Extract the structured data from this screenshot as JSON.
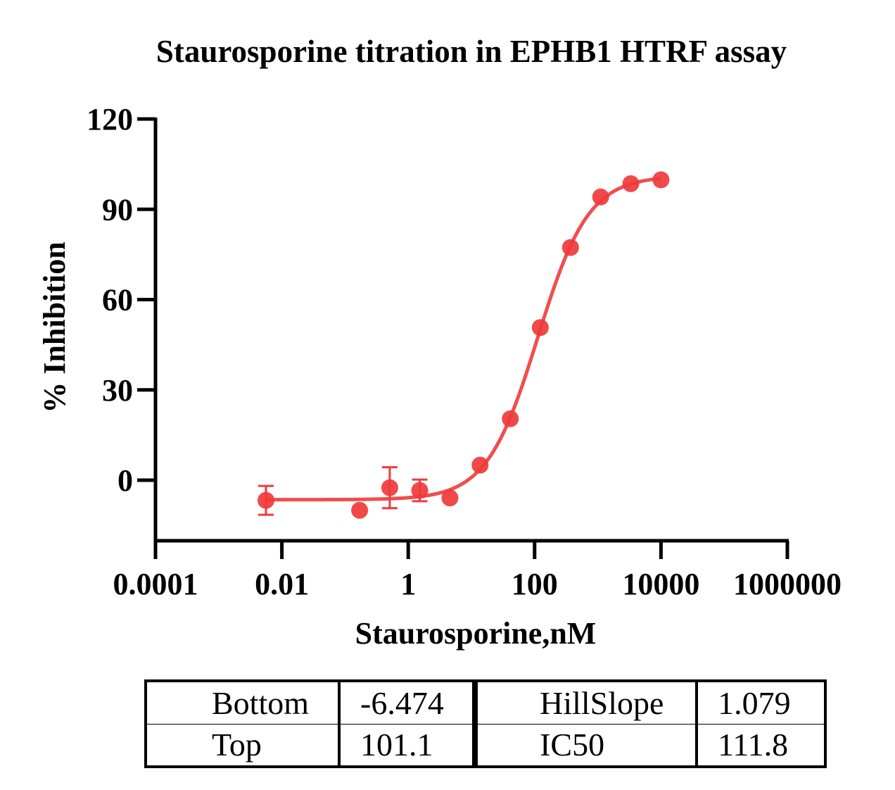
{
  "chart_data": {
    "type": "scatter",
    "title": "Staurosporine titration in EPHB1 HTRF assay",
    "xlabel": "Staurosporine,nM",
    "ylabel": "% Inhibition",
    "x_scale": "log10",
    "xlim": [
      0.0001,
      1000000
    ],
    "ylim": [
      -20,
      120
    ],
    "x_ticks": [
      "0.0001",
      "0.01",
      "1",
      "100",
      "10000",
      "1000000"
    ],
    "y_ticks": [
      "0",
      "30",
      "60",
      "90",
      "120"
    ],
    "grid": false,
    "color": "#f03a3a",
    "series": [
      {
        "points": [
          {
            "x": 0.0056,
            "y": -6.7,
            "err": 4.8
          },
          {
            "x": 0.17,
            "y": -10.0,
            "err": 0
          },
          {
            "x": 0.51,
            "y": -2.5,
            "err": 6.8
          },
          {
            "x": 1.52,
            "y": -3.4,
            "err": 3.6
          },
          {
            "x": 4.57,
            "y": -5.9,
            "err": 0
          },
          {
            "x": 13.7,
            "y": 5.0,
            "err": 0
          },
          {
            "x": 41.2,
            "y": 20.4,
            "err": 0
          },
          {
            "x": 123,
            "y": 50.7,
            "err": 0
          },
          {
            "x": 370,
            "y": 77.3,
            "err": 0
          },
          {
            "x": 1111,
            "y": 94.1,
            "err": 0
          },
          {
            "x": 3333,
            "y": 98.5,
            "err": 0
          },
          {
            "x": 10000,
            "y": 99.8,
            "err": 0
          }
        ]
      }
    ],
    "fit": {
      "bottom": -6.474,
      "top": 101.1,
      "hillslope": 1.079,
      "ic50": 111.8
    }
  },
  "params_table": {
    "rows": [
      {
        "label1": "Bottom",
        "value1": "-6.474",
        "label2": "HillSlope",
        "value2": "1.079"
      },
      {
        "label1": "Top",
        "value1": "101.1",
        "label2": "IC50",
        "value2": "111.8"
      }
    ]
  }
}
